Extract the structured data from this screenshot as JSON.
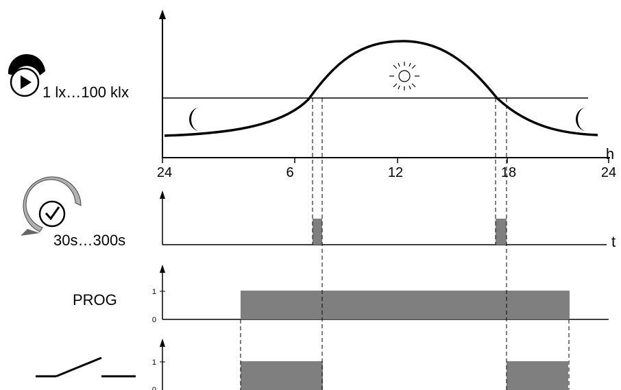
{
  "light_panel": {
    "range_label": "1 lx…100 klx",
    "x_axis_unit": "h",
    "x_ticks": [
      "24",
      "6",
      "12",
      "18",
      "24"
    ]
  },
  "delay_panel": {
    "range_label": "30s…300s",
    "axis_unit": "t"
  },
  "prog_panel": {
    "label": "PROG",
    "level_high": "1",
    "level_low": "0"
  },
  "contact_panel": {
    "level_high": "1",
    "level_low": "0"
  },
  "icons": [
    "light-sensor-dial-icon",
    "moon-icon",
    "sun-icon",
    "timer-dial-icon",
    "switch-contact-icon"
  ],
  "colors": {
    "fill_gray": "#7f7f7f",
    "ink": "#000000"
  }
}
